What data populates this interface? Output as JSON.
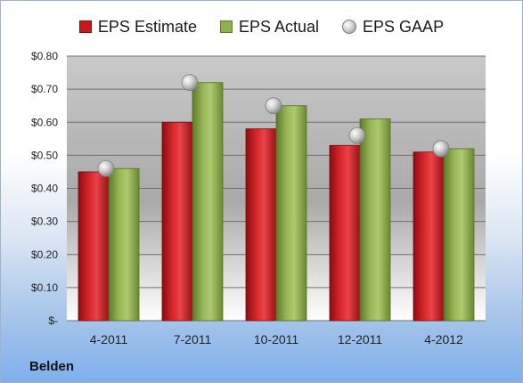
{
  "company": "Belden",
  "legend": {
    "estimate": "EPS Estimate",
    "actual": "EPS Actual",
    "gaap": "EPS GAAP"
  },
  "colors": {
    "estimate": "#c8191d",
    "actual": "#8fb04f",
    "gaap": "#bdbdbd"
  },
  "chart_data": {
    "type": "bar",
    "categories": [
      "4-2011",
      "7-2011",
      "10-2011",
      "12-2011",
      "4-2012"
    ],
    "series": [
      {
        "name": "EPS Estimate",
        "kind": "bar",
        "values": [
          0.45,
          0.6,
          0.58,
          0.53,
          0.51
        ]
      },
      {
        "name": "EPS Actual",
        "kind": "bar",
        "values": [
          0.46,
          0.72,
          0.65,
          0.61,
          0.52
        ]
      },
      {
        "name": "EPS GAAP",
        "kind": "marker",
        "values": [
          0.46,
          0.72,
          0.65,
          0.56,
          0.52
        ]
      }
    ],
    "ylim": [
      0,
      0.8
    ],
    "yticks": [
      0,
      0.1,
      0.2,
      0.3,
      0.4,
      0.5,
      0.6,
      0.7,
      0.8
    ],
    "ytick_labels": [
      "$-",
      "$0.10",
      "$0.20",
      "$0.30",
      "$0.40",
      "$0.50",
      "$0.60",
      "$0.70",
      "$0.80"
    ],
    "grid": true,
    "legend_position": "top"
  }
}
